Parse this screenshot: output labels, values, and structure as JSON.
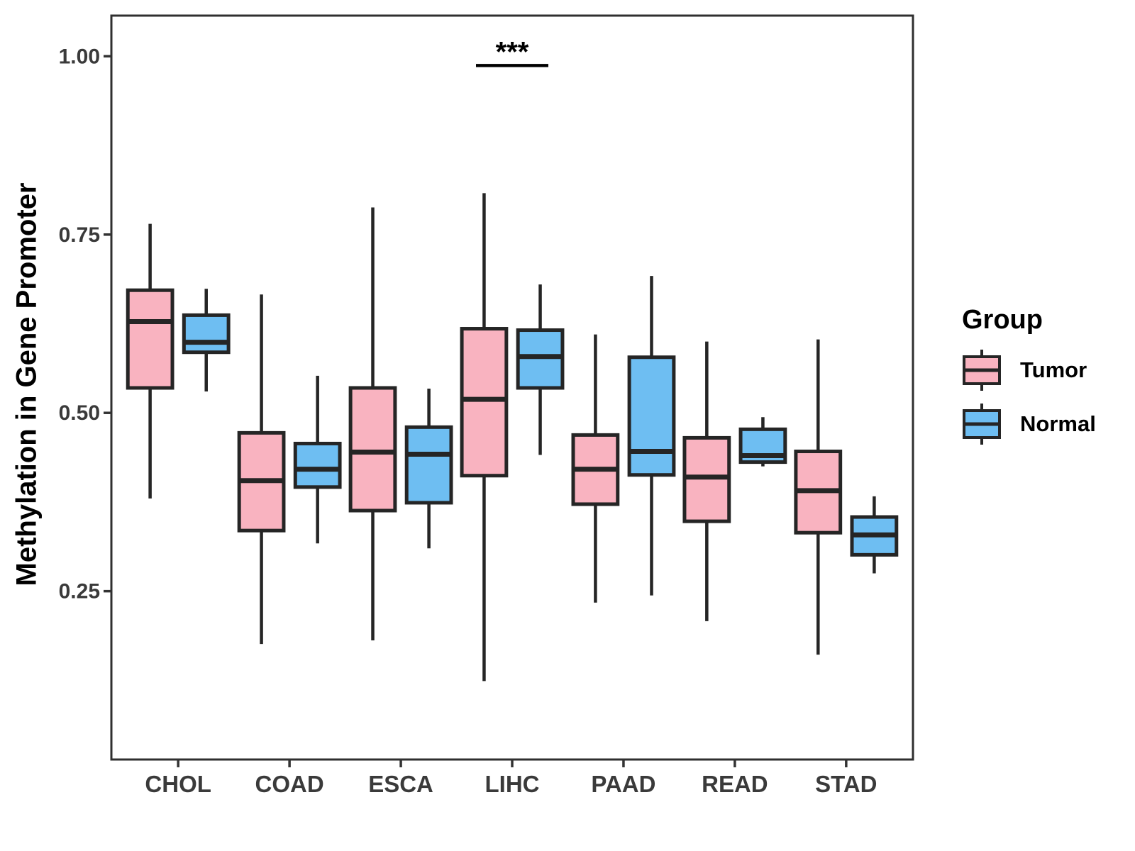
{
  "figure": {
    "y_axis_label": "Methylation in Gene Promoter"
  },
  "legend": {
    "title": "Group",
    "items": [
      {
        "label": "Tumor",
        "color": "#F9B3C0"
      },
      {
        "label": "Normal",
        "color": "#6EBEF2"
      }
    ]
  },
  "chart_data": {
    "type": "boxplot",
    "title": "",
    "xlabel": "",
    "ylabel": "Methylation in Gene Promoter",
    "categories": [
      "CHOL",
      "COAD",
      "ESCA",
      "LIHC",
      "PAAD",
      "READ",
      "STAD"
    ],
    "y_ticks": [
      0.25,
      0.5,
      0.75,
      1.0
    ],
    "ylim": [
      0.014,
      1.057
    ],
    "grid": false,
    "legend_position": "right",
    "box_stroke_color": "#252525",
    "axis_text_color": "#3a3a3a",
    "series": [
      {
        "name": "Tumor",
        "color": "#F9B3C0",
        "boxes": [
          {
            "category": "CHOL",
            "min": 0.38,
            "q1": 0.535,
            "median": 0.628,
            "q3": 0.672,
            "max": 0.765
          },
          {
            "category": "COAD",
            "min": 0.176,
            "q1": 0.335,
            "median": 0.405,
            "q3": 0.472,
            "max": 0.666
          },
          {
            "category": "ESCA",
            "min": 0.181,
            "q1": 0.363,
            "median": 0.445,
            "q3": 0.535,
            "max": 0.788
          },
          {
            "category": "LIHC",
            "min": 0.124,
            "q1": 0.412,
            "median": 0.519,
            "q3": 0.618,
            "max": 0.808
          },
          {
            "category": "PAAD",
            "min": 0.234,
            "q1": 0.372,
            "median": 0.421,
            "q3": 0.469,
            "max": 0.61
          },
          {
            "category": "READ",
            "min": 0.208,
            "q1": 0.348,
            "median": 0.41,
            "q3": 0.465,
            "max": 0.6
          },
          {
            "category": "STAD",
            "min": 0.161,
            "q1": 0.332,
            "median": 0.391,
            "q3": 0.446,
            "max": 0.603
          }
        ]
      },
      {
        "name": "Normal",
        "color": "#6EBEF2",
        "boxes": [
          {
            "category": "CHOL",
            "min": 0.53,
            "q1": 0.585,
            "median": 0.599,
            "q3": 0.637,
            "max": 0.674
          },
          {
            "category": "COAD",
            "min": 0.317,
            "q1": 0.396,
            "median": 0.421,
            "q3": 0.457,
            "max": 0.552
          },
          {
            "category": "ESCA",
            "min": 0.31,
            "q1": 0.374,
            "median": 0.442,
            "q3": 0.48,
            "max": 0.534
          },
          {
            "category": "LIHC",
            "min": 0.441,
            "q1": 0.535,
            "median": 0.579,
            "q3": 0.616,
            "max": 0.68
          },
          {
            "category": "PAAD",
            "min": 0.244,
            "q1": 0.413,
            "median": 0.446,
            "q3": 0.578,
            "max": 0.692
          },
          {
            "category": "READ",
            "min": 0.425,
            "q1": 0.431,
            "median": 0.44,
            "q3": 0.477,
            "max": 0.494
          },
          {
            "category": "STAD",
            "min": 0.275,
            "q1": 0.301,
            "median": 0.329,
            "q3": 0.354,
            "max": 0.383
          }
        ]
      }
    ],
    "annotation": {
      "text": "***",
      "category": "LIHC",
      "line_y": 0.987
    }
  }
}
